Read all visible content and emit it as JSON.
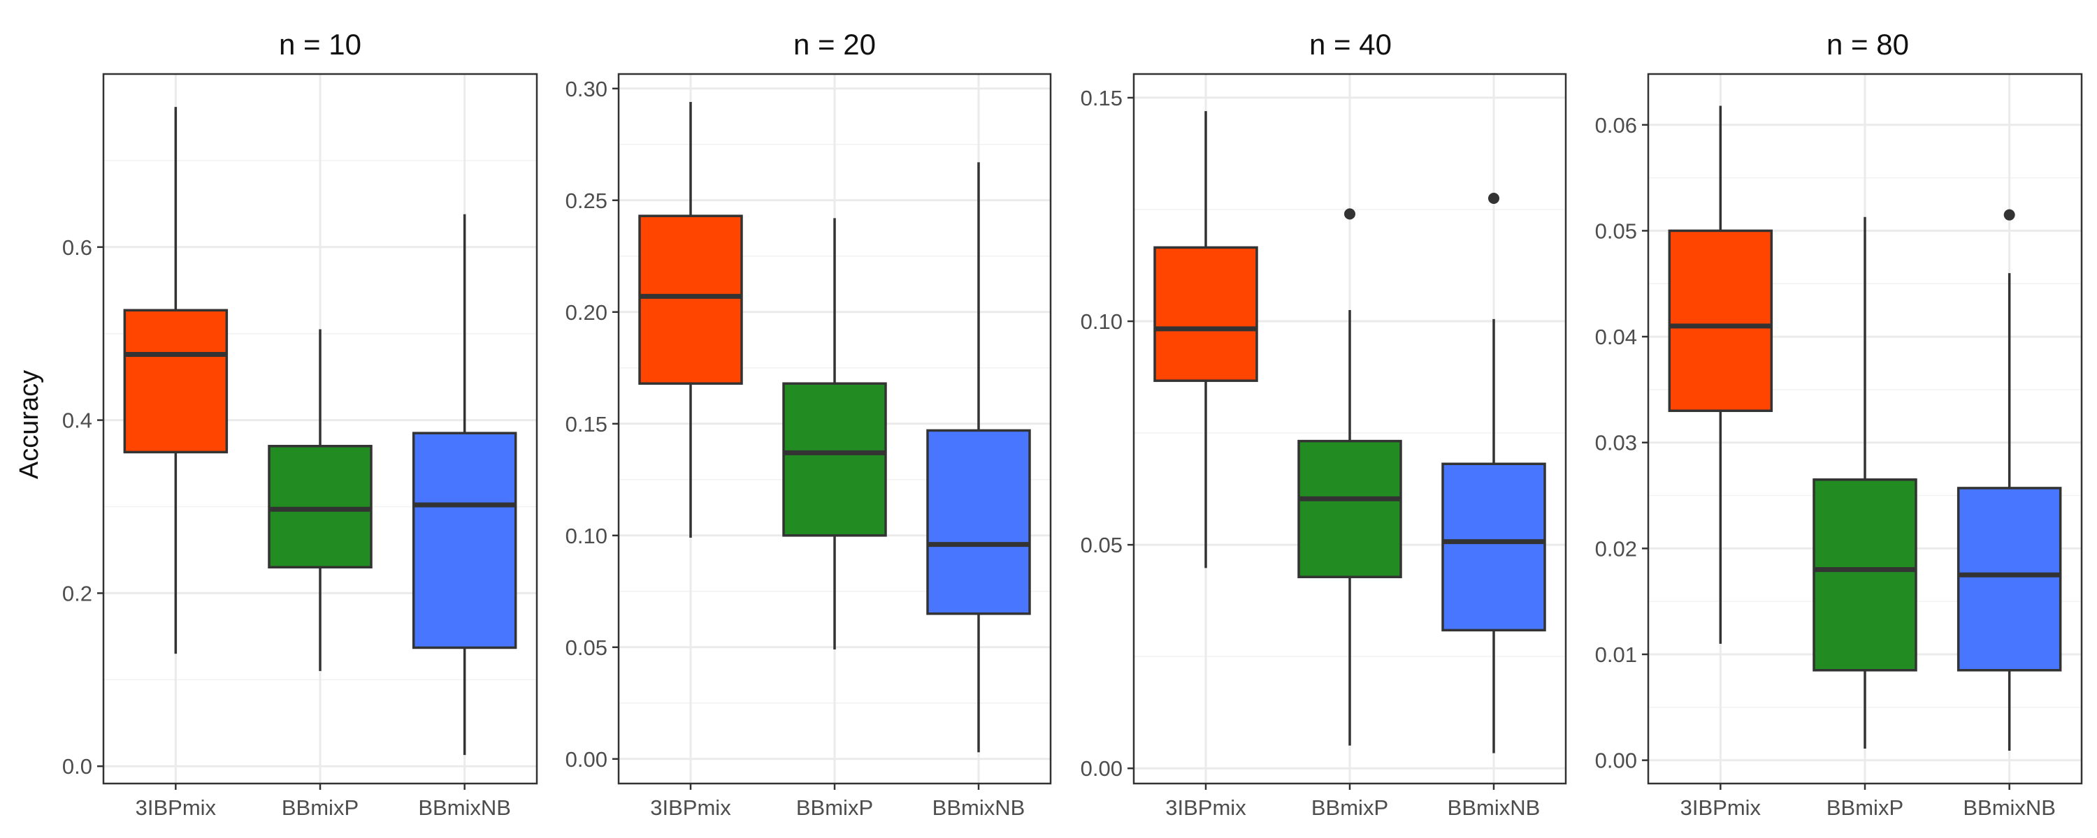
{
  "figure": {
    "ylabel": "Accuracy"
  },
  "chart_data": [
    {
      "type": "boxplot",
      "title": "n =  10",
      "xlabel": "",
      "ylabel": "Accuracy",
      "categories": [
        "3IBPmix",
        "BBmixP",
        "BBmixNB"
      ],
      "colors": [
        "#FF4500",
        "#228B22",
        "#4876FF"
      ],
      "ylim": [
        -0.02,
        0.8
      ],
      "yticks": [
        0.0,
        0.2,
        0.4,
        0.6
      ],
      "ytick_labels": [
        "0.0",
        "0.2",
        "0.4",
        "0.6"
      ],
      "grid": true,
      "boxes": [
        {
          "category": "3IBPmix",
          "whisker_low": 0.13,
          "q1": 0.363,
          "median": 0.476,
          "q3": 0.527,
          "whisker_high": 0.762,
          "outliers": []
        },
        {
          "category": "BBmixP",
          "whisker_low": 0.11,
          "q1": 0.23,
          "median": 0.297,
          "q3": 0.37,
          "whisker_high": 0.505,
          "outliers": []
        },
        {
          "category": "BBmixNB",
          "whisker_low": 0.013,
          "q1": 0.137,
          "median": 0.302,
          "q3": 0.385,
          "whisker_high": 0.638,
          "outliers": []
        }
      ]
    },
    {
      "type": "boxplot",
      "title": "n =  20",
      "xlabel": "",
      "ylabel": "",
      "categories": [
        "3IBPmix",
        "BBmixP",
        "BBmixNB"
      ],
      "colors": [
        "#FF4500",
        "#228B22",
        "#4876FF"
      ],
      "ylim": [
        -0.011,
        0.3065
      ],
      "yticks": [
        0.0,
        0.05,
        0.1,
        0.15,
        0.2,
        0.25,
        0.3
      ],
      "ytick_labels": [
        "0.00",
        "0.05",
        "0.10",
        "0.15",
        "0.20",
        "0.25",
        "0.30"
      ],
      "grid": true,
      "boxes": [
        {
          "category": "3IBPmix",
          "whisker_low": 0.099,
          "q1": 0.168,
          "median": 0.207,
          "q3": 0.243,
          "whisker_high": 0.294,
          "outliers": []
        },
        {
          "category": "BBmixP",
          "whisker_low": 0.049,
          "q1": 0.1,
          "median": 0.137,
          "q3": 0.168,
          "whisker_high": 0.242,
          "outliers": []
        },
        {
          "category": "BBmixNB",
          "whisker_low": 0.003,
          "q1": 0.065,
          "median": 0.096,
          "q3": 0.147,
          "whisker_high": 0.267,
          "outliers": []
        }
      ]
    },
    {
      "type": "boxplot",
      "title": "n =  40",
      "xlabel": "",
      "ylabel": "",
      "categories": [
        "3IBPmix",
        "BBmixP",
        "BBmixNB"
      ],
      "colors": [
        "#FF4500",
        "#228B22",
        "#4876FF"
      ],
      "ylim": [
        -0.0034,
        0.1553
      ],
      "yticks": [
        0.0,
        0.05,
        0.1,
        0.15
      ],
      "ytick_labels": [
        "0.00",
        "0.05",
        "0.10",
        "0.15"
      ],
      "grid": true,
      "boxes": [
        {
          "category": "3IBPmix",
          "whisker_low": 0.0448,
          "q1": 0.0867,
          "median": 0.0983,
          "q3": 0.1165,
          "whisker_high": 0.147,
          "outliers": []
        },
        {
          "category": "BBmixP",
          "whisker_low": 0.0051,
          "q1": 0.0428,
          "median": 0.0603,
          "q3": 0.0732,
          "whisker_high": 0.1025,
          "outliers": [
            0.124
          ]
        },
        {
          "category": "BBmixNB",
          "whisker_low": 0.0034,
          "q1": 0.0309,
          "median": 0.0507,
          "q3": 0.0681,
          "whisker_high": 0.1005,
          "outliers": [
            0.1275
          ]
        }
      ]
    },
    {
      "type": "boxplot",
      "title": "n =  80",
      "xlabel": "",
      "ylabel": "",
      "categories": [
        "3IBPmix",
        "BBmixP",
        "BBmixNB"
      ],
      "colors": [
        "#FF4500",
        "#228B22",
        "#4876FF"
      ],
      "ylim": [
        -0.0022,
        0.0648
      ],
      "yticks": [
        0.0,
        0.01,
        0.02,
        0.03,
        0.04,
        0.05,
        0.06
      ],
      "ytick_labels": [
        "0.00",
        "0.01",
        "0.02",
        "0.03",
        "0.04",
        "0.05",
        "0.06"
      ],
      "grid": true,
      "boxes": [
        {
          "category": "3IBPmix",
          "whisker_low": 0.011,
          "q1": 0.033,
          "median": 0.041,
          "q3": 0.05,
          "whisker_high": 0.0618,
          "outliers": []
        },
        {
          "category": "BBmixP",
          "whisker_low": 0.0011,
          "q1": 0.0085,
          "median": 0.018,
          "q3": 0.0265,
          "whisker_high": 0.0513,
          "outliers": []
        },
        {
          "category": "BBmixNB",
          "whisker_low": 0.0009,
          "q1": 0.0085,
          "median": 0.0175,
          "q3": 0.0257,
          "whisker_high": 0.046,
          "outliers": [
            0.0515
          ]
        }
      ]
    }
  ]
}
